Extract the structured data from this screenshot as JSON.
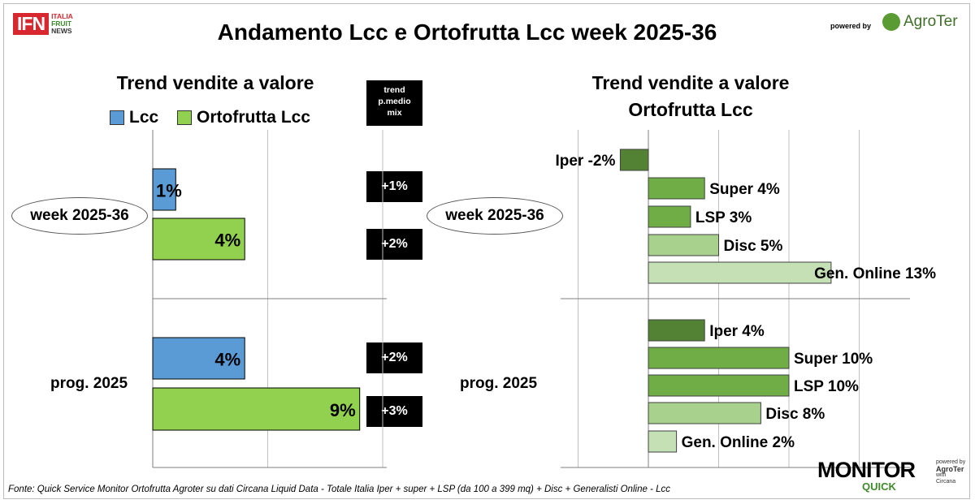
{
  "header": {
    "ifn_logo": "IFN",
    "ifn_words": [
      "ITALIA",
      "FRUIT",
      "NEWS"
    ],
    "title": "Andamento Lcc e Ortofrutta Lcc week 2025-36",
    "powered_by": "powered by",
    "brand": "AgroTer"
  },
  "left": {
    "subtitle": "Trend vendite a valore",
    "legend": [
      {
        "name": "Lcc",
        "color": "#5b9bd5"
      },
      {
        "name": "Ortofrutta Lcc",
        "color": "#92d050"
      }
    ],
    "trend_header": [
      "trend",
      "p.medio",
      "mix"
    ],
    "badges": [
      "+1%",
      "+2%",
      "+2%",
      "+3%"
    ]
  },
  "right": {
    "subtitle_line1": "Trend vendite a valore",
    "subtitle_line2": "Ortofrutta Lcc"
  },
  "footer": {
    "source": "Fonte: Quick Service Monitor Ortofrutta Agroter su dati Circana Liquid Data - Totale Italia Iper + super + LSP (da 100 a 399 mq) + Disc + Generalisti Online - Lcc",
    "monitor": "MONITOR",
    "quick": "QUICK",
    "side_powered": "powered by",
    "side_brand": "AgroTer",
    "side_with": "with",
    "side_circana": "Circana"
  },
  "chart_data": [
    {
      "type": "bar",
      "orientation": "horizontal",
      "categories": [
        "week 2025-36",
        "prog. 2025"
      ],
      "series": [
        {
          "name": "Lcc",
          "color": "#5b9bd5",
          "values": [
            1,
            4
          ],
          "labels": [
            "1%",
            "4%"
          ]
        },
        {
          "name": "Ortofrutta Lcc",
          "color": "#92d050",
          "values": [
            4,
            9
          ],
          "labels": [
            "4%",
            "9%"
          ]
        }
      ],
      "xlim": [
        0,
        10
      ]
    },
    {
      "type": "bar",
      "orientation": "horizontal",
      "categories": [
        "week 2025-36",
        "prog. 2025"
      ],
      "groups": [
        {
          "category": "week 2025-36",
          "bars": [
            {
              "channel": "Iper",
              "value": -2,
              "label": "Iper -2%",
              "color": "#548235"
            },
            {
              "channel": "Super",
              "value": 4,
              "label": "Super 4%",
              "color": "#70ad47"
            },
            {
              "channel": "LSP",
              "value": 3,
              "label": "LSP 3%",
              "color": "#70ad47"
            },
            {
              "channel": "Disc",
              "value": 5,
              "label": "Disc 5%",
              "color": "#a9d18e"
            },
            {
              "channel": "Gen. Online",
              "value": 13,
              "label": "Gen. Online 13%",
              "color": "#c5e0b4"
            }
          ]
        },
        {
          "category": "prog. 2025",
          "bars": [
            {
              "channel": "Iper",
              "value": 4,
              "label": "Iper 4%",
              "color": "#548235"
            },
            {
              "channel": "Super",
              "value": 10,
              "label": "Super 10%",
              "color": "#70ad47"
            },
            {
              "channel": "LSP",
              "value": 10,
              "label": "LSP 10%",
              "color": "#70ad47"
            },
            {
              "channel": "Disc",
              "value": 8,
              "label": "Disc 8%",
              "color": "#a9d18e"
            },
            {
              "channel": "Gen. Online",
              "value": 2,
              "label": "Gen. Online 2%",
              "color": "#c5e0b4"
            }
          ]
        }
      ],
      "xlim": [
        -3,
        15
      ]
    }
  ]
}
